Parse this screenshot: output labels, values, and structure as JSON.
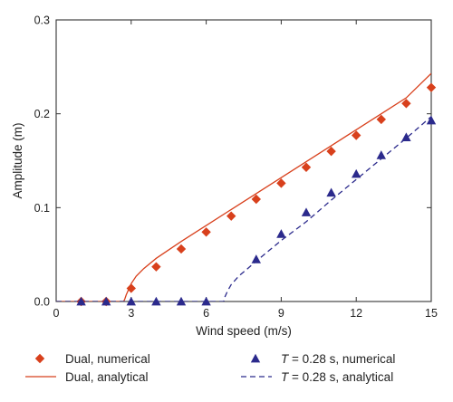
{
  "chart_data": {
    "type": "line",
    "title": "",
    "xlabel": "Wind speed (m/s)",
    "ylabel": "Amplitude (m)",
    "xlim": [
      0,
      15
    ],
    "ylim": [
      0,
      0.3
    ],
    "xticks": [
      "0",
      "3",
      "6",
      "9",
      "12",
      "15"
    ],
    "yticks": [
      "0.0",
      "0.1",
      "0.2",
      "0.3"
    ],
    "grid": false,
    "legend_position": "bottom",
    "series": [
      {
        "name": "Dual, numerical",
        "kind": "scatter",
        "marker": "diamond",
        "color": "#d8401c",
        "x": [
          1,
          2,
          3,
          4,
          5,
          6,
          7,
          8,
          9,
          10,
          11,
          12,
          13,
          14,
          15
        ],
        "y": [
          0.0,
          0.0,
          0.014,
          0.037,
          0.056,
          0.074,
          0.091,
          0.109,
          0.126,
          0.143,
          0.16,
          0.177,
          0.194,
          0.211,
          0.228
        ]
      },
      {
        "name": "Dual, analytical",
        "kind": "line",
        "dash": "solid",
        "color": "#d8401c",
        "x": [
          0,
          2.7,
          2.75,
          2.8,
          2.9,
          3.0,
          3.2,
          3.5,
          4.0,
          5.0,
          6.0,
          7.0,
          8.0,
          9.0,
          10.0,
          11.0,
          12.0,
          13.0,
          14.0,
          15.0
        ],
        "y": [
          0.0,
          0.0,
          0.003,
          0.007,
          0.013,
          0.019,
          0.027,
          0.035,
          0.046,
          0.064,
          0.081,
          0.098,
          0.115,
          0.132,
          0.149,
          0.166,
          0.183,
          0.2,
          0.217,
          0.243
        ]
      },
      {
        "name": "T = 0.28 s, numerical",
        "kind": "scatter",
        "marker": "triangle",
        "color": "#2b2a8c",
        "x": [
          1,
          2,
          3,
          4,
          5,
          6,
          8,
          9,
          10,
          11,
          12,
          13,
          14,
          15
        ],
        "y": [
          0.0,
          0.0,
          0.0,
          0.0,
          0.0,
          0.0,
          0.045,
          0.072,
          0.095,
          0.116,
          0.136,
          0.156,
          0.175,
          0.193
        ]
      },
      {
        "name": "T = 0.28 s, analytical",
        "kind": "line",
        "dash": "dashed",
        "color": "#2b2a8c",
        "x": [
          0,
          6.7,
          6.75,
          6.85,
          7.0,
          7.3,
          7.7,
          8.0,
          8.5,
          9.0,
          9.5,
          10.0,
          11.0,
          12.0,
          13.0,
          14.0,
          15.0
        ],
        "y": [
          0.0,
          0.0,
          0.005,
          0.011,
          0.018,
          0.027,
          0.036,
          0.043,
          0.054,
          0.065,
          0.075,
          0.085,
          0.108,
          0.13,
          0.152,
          0.174,
          0.197
        ]
      }
    ],
    "legend": [
      {
        "text": "Dual, numerical",
        "italic_prefix": "",
        "series": 0
      },
      {
        "text": " = 0.28 s, numerical",
        "italic_prefix": "T",
        "series": 2
      },
      {
        "text": "Dual, analytical",
        "italic_prefix": "",
        "series": 1
      },
      {
        "text": " = 0.28 s, analytical",
        "italic_prefix": "T",
        "series": 3
      }
    ]
  }
}
